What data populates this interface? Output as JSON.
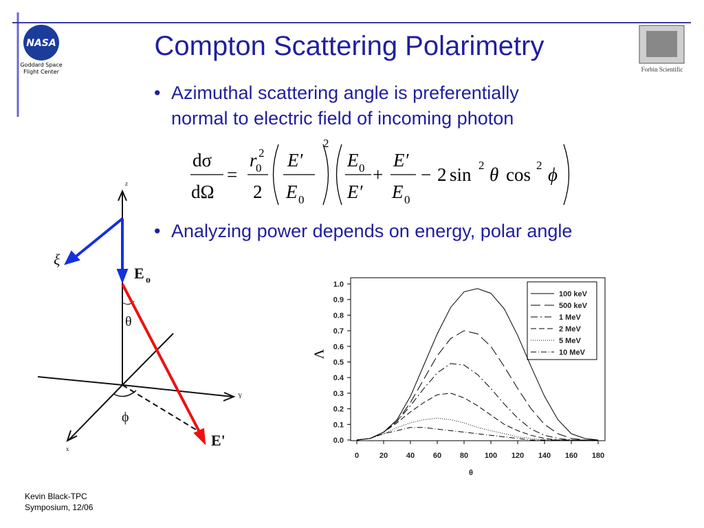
{
  "header": {
    "title": "Compton Scattering Polarimetry",
    "logo_left": {
      "mark": "NASA",
      "lines": [
        "Goddard Space",
        "Flight Center"
      ]
    },
    "logo_right": "Forbin Scientific"
  },
  "bullets": [
    {
      "lines": [
        "Azimuthal scattering angle is preferentially",
        "normal to electric field of incoming photon"
      ]
    },
    {
      "lines": [
        "Analyzing power depends on energy, polar angle"
      ]
    }
  ],
  "equation": {
    "tokens": [
      "dσ",
      "dΩ",
      "=",
      "r",
      "0",
      "2",
      "2",
      "E′",
      "E",
      "0",
      "2",
      "E",
      "0",
      "E′",
      "+",
      "E′",
      "E",
      "0",
      "−",
      "2",
      "sin",
      "2",
      "θ",
      "cos",
      "2",
      "ϕ"
    ]
  },
  "diagram": {
    "labels": [
      "z",
      "ξ",
      "E",
      "o",
      "θ",
      "Y",
      "ϕ",
      "x",
      "E'"
    ]
  },
  "footer": {
    "lines": [
      "Kevin Black-TPC",
      "Symposium, 12/06"
    ]
  },
  "chart_data": {
    "type": "line",
    "x_label": "θ",
    "y_label": "Λ",
    "x": [
      0,
      10,
      20,
      30,
      40,
      50,
      60,
      70,
      80,
      90,
      100,
      110,
      120,
      130,
      140,
      150,
      160,
      170,
      180
    ],
    "series": [
      {
        "name": "100 keV",
        "color": "#000000",
        "dash": "none",
        "values": [
          0,
          0.01,
          0.05,
          0.13,
          0.28,
          0.48,
          0.68,
          0.85,
          0.95,
          0.97,
          0.94,
          0.84,
          0.67,
          0.47,
          0.28,
          0.13,
          0.04,
          0.01,
          0
        ]
      },
      {
        "name": "500 keV",
        "color": "#000000",
        "dash": "14 6",
        "values": [
          0,
          0.01,
          0.05,
          0.12,
          0.24,
          0.39,
          0.54,
          0.65,
          0.7,
          0.68,
          0.6,
          0.47,
          0.33,
          0.2,
          0.1,
          0.04,
          0.01,
          0,
          0
        ]
      },
      {
        "name": "1 MeV",
        "color": "#000000",
        "dash": "10 4 2 4",
        "values": [
          0,
          0.01,
          0.05,
          0.12,
          0.22,
          0.33,
          0.43,
          0.49,
          0.48,
          0.42,
          0.33,
          0.23,
          0.14,
          0.07,
          0.03,
          0.01,
          0,
          0,
          0
        ]
      },
      {
        "name": "2 MeV",
        "color": "#000000",
        "dash": "8 4",
        "values": [
          0,
          0.01,
          0.05,
          0.11,
          0.18,
          0.24,
          0.29,
          0.3,
          0.27,
          0.22,
          0.16,
          0.1,
          0.06,
          0.03,
          0.01,
          0,
          0,
          0,
          0
        ]
      },
      {
        "name": "5 MeV",
        "color": "#000000",
        "dash": "1 2",
        "values": [
          0,
          0.01,
          0.04,
          0.08,
          0.11,
          0.13,
          0.14,
          0.13,
          0.11,
          0.08,
          0.06,
          0.04,
          0.02,
          0.01,
          0,
          0,
          0,
          0,
          0
        ]
      },
      {
        "name": "10 MeV",
        "color": "#000000",
        "dash": "8 3 1 3",
        "values": [
          0,
          0.01,
          0.04,
          0.06,
          0.08,
          0.08,
          0.07,
          0.06,
          0.05,
          0.04,
          0.03,
          0.02,
          0.01,
          0,
          0,
          0,
          0,
          0,
          0
        ]
      }
    ],
    "xlim": [
      0,
      180
    ],
    "xticks": [
      0,
      20,
      40,
      60,
      80,
      100,
      120,
      140,
      160,
      180
    ],
    "ylim": [
      0,
      1.0
    ],
    "yticks": [
      {
        "value": 0,
        "label": "0.0"
      },
      0.1,
      0.2,
      0.3,
      0.4,
      0.5,
      0.6,
      0.7,
      0.8,
      0.9,
      {
        "value": 1.0,
        "label": "1.0"
      }
    ]
  }
}
